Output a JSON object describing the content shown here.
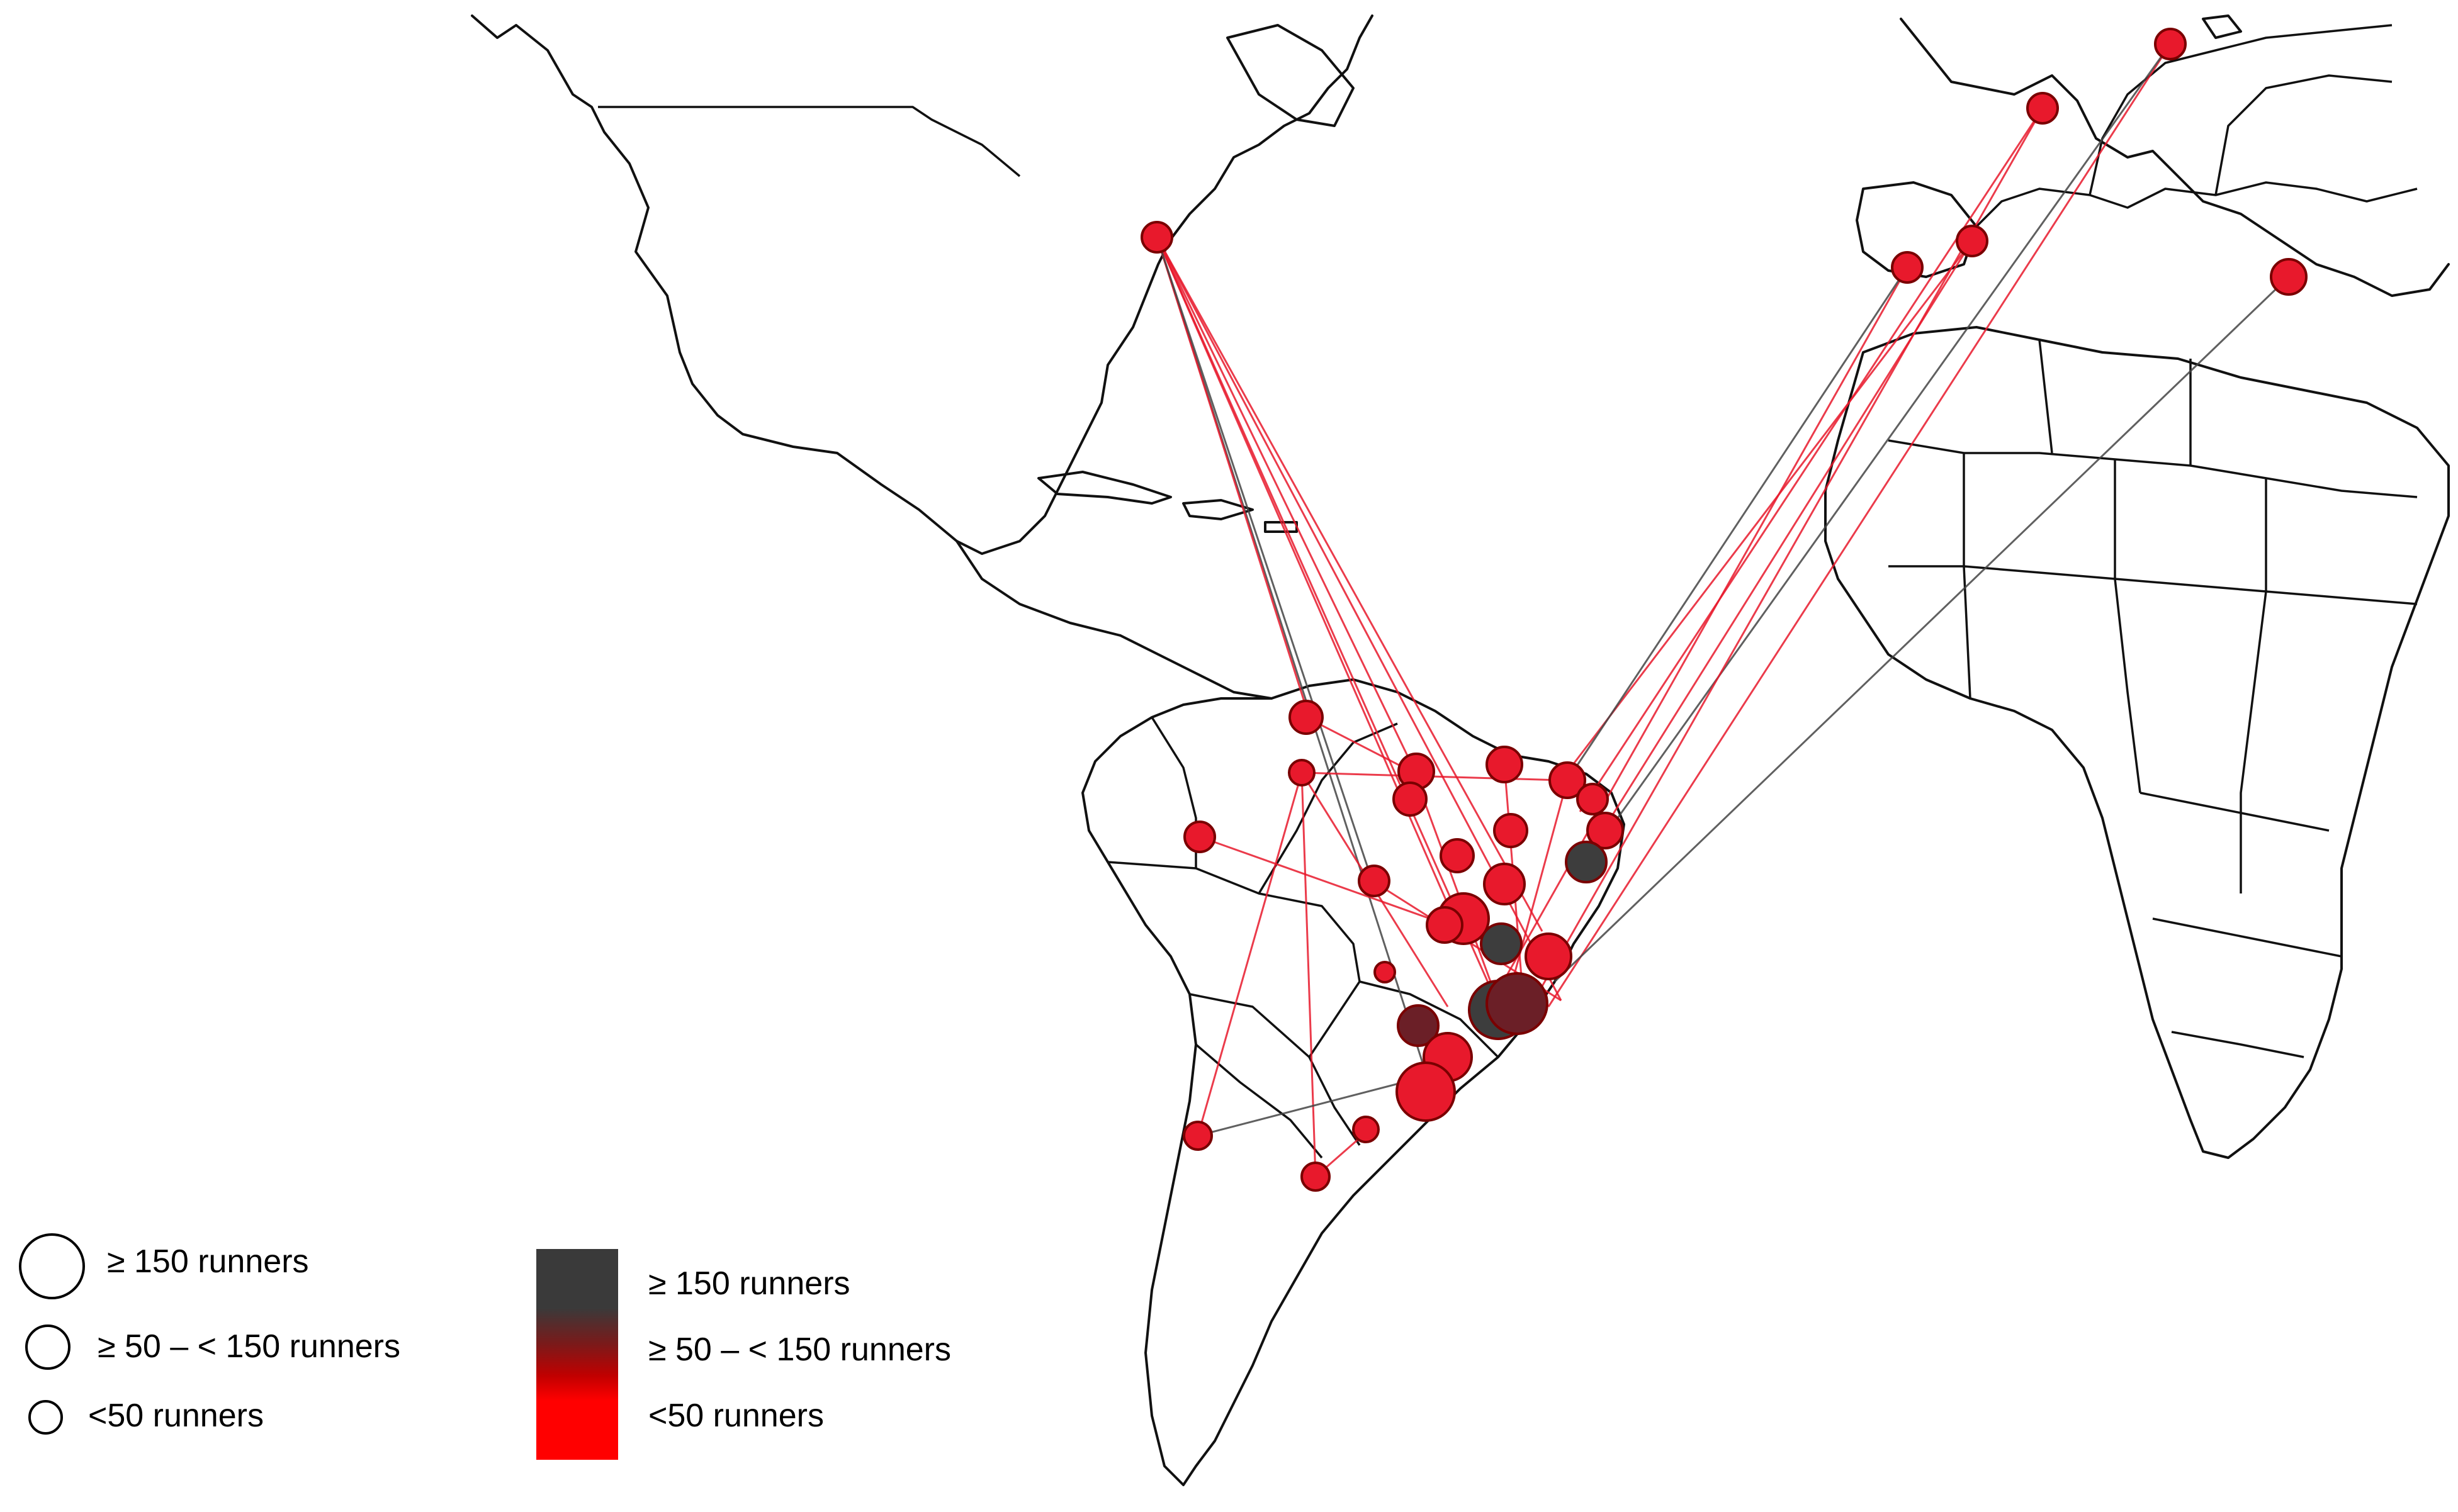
{
  "legend_size": {
    "large_label": "≥ 150 runners",
    "medium_label": "≥ 50 – < 150 runners",
    "small_label": "<50 runners"
  },
  "legend_color": {
    "high_label": "≥ 150 runners",
    "mid_label": "≥ 50 – < 150 runners",
    "low_label": "<50 runners",
    "colors": {
      "high": "#3a3a3a",
      "mid": "#7a1a1a",
      "low": "#ff0000"
    }
  },
  "colors": {
    "flow_red": "#e8192c",
    "flow_dark": "#444444",
    "node_red": "#e8192c",
    "node_dark": "#3d3d3d",
    "node_mid": "#6b1f27"
  }
}
